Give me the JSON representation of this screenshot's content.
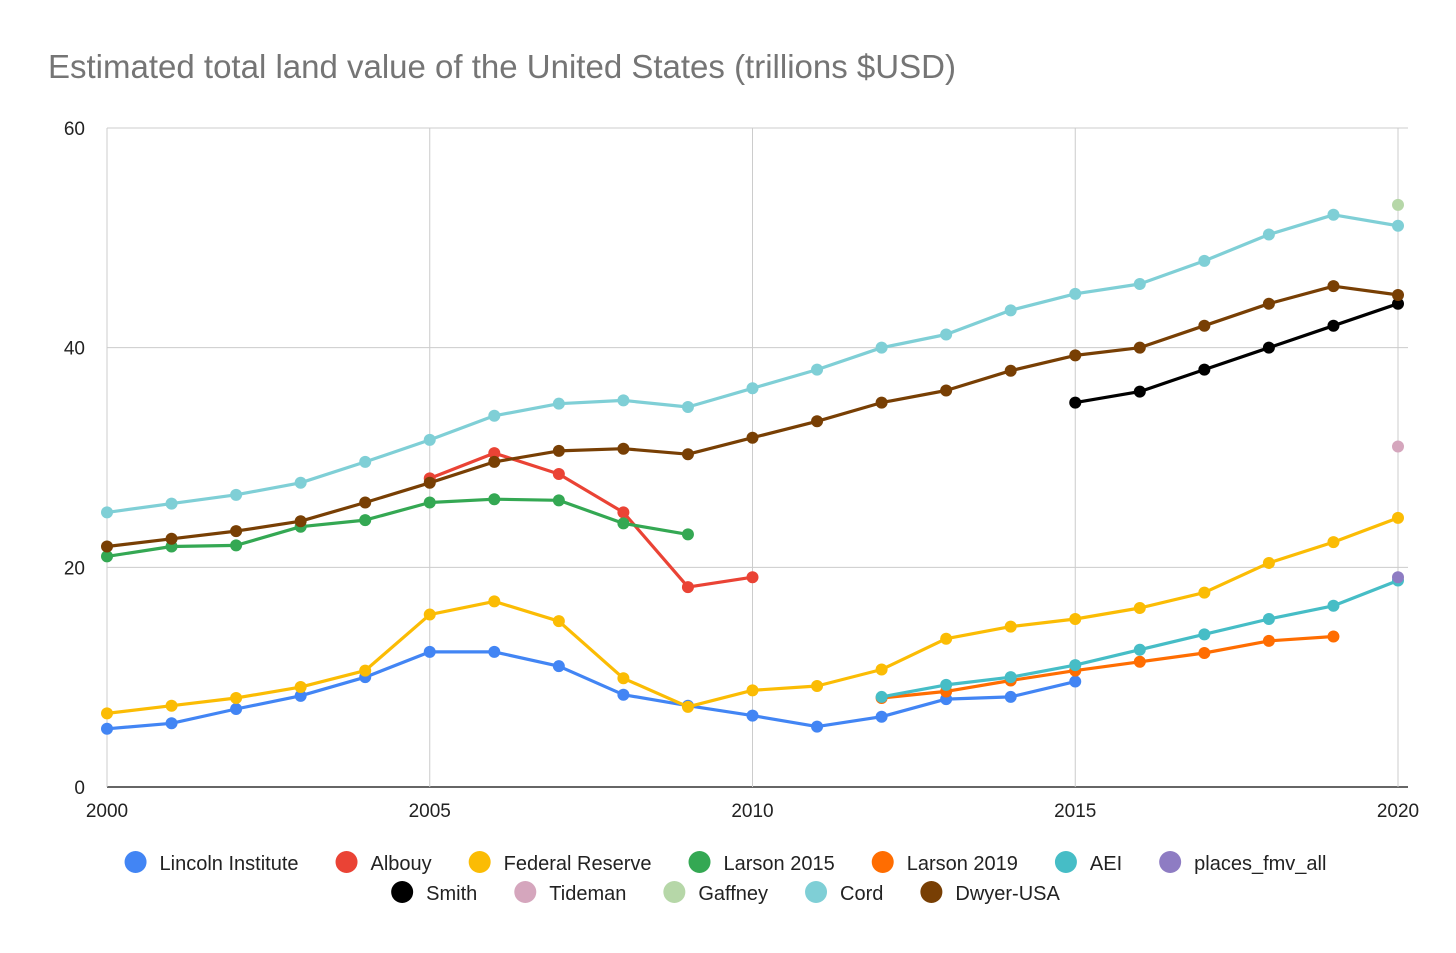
{
  "chart_data": {
    "type": "line",
    "title": "Estimated total land value of the United States (trillions $USD)",
    "xlabel": "",
    "ylabel": "",
    "xlim": [
      2000,
      2020
    ],
    "ylim": [
      0,
      60
    ],
    "x_ticks": [
      "2000",
      "2005",
      "2010",
      "2015",
      "2020"
    ],
    "y_ticks": [
      "0",
      "20",
      "40",
      "60"
    ],
    "grid": true,
    "legend_position": "bottom",
    "series": [
      {
        "name": "Lincoln Institute",
        "color": "#4285f4",
        "points": [
          [
            2000,
            5.3
          ],
          [
            2001,
            5.8
          ],
          [
            2002,
            7.1
          ],
          [
            2003,
            8.3
          ],
          [
            2004,
            10.0
          ],
          [
            2005,
            12.3
          ],
          [
            2006,
            12.3
          ],
          [
            2007,
            11.0
          ],
          [
            2008,
            8.4
          ],
          [
            2009,
            7.4
          ],
          [
            2010,
            6.5
          ],
          [
            2011,
            5.5
          ],
          [
            2012,
            6.4
          ],
          [
            2013,
            8.0
          ],
          [
            2014,
            8.2
          ],
          [
            2015,
            9.6
          ]
        ]
      },
      {
        "name": "Albouy",
        "color": "#ea4335",
        "points": [
          [
            2005,
            28.1
          ],
          [
            2006,
            30.4
          ],
          [
            2007,
            28.5
          ],
          [
            2008,
            25.0
          ],
          [
            2009,
            18.2
          ],
          [
            2010,
            19.1
          ]
        ]
      },
      {
        "name": "Federal Reserve",
        "color": "#fbbc04",
        "points": [
          [
            2000,
            6.7
          ],
          [
            2001,
            7.4
          ],
          [
            2002,
            8.1
          ],
          [
            2003,
            9.1
          ],
          [
            2004,
            10.6
          ],
          [
            2005,
            15.7
          ],
          [
            2006,
            16.9
          ],
          [
            2007,
            15.1
          ],
          [
            2008,
            9.9
          ],
          [
            2009,
            7.3
          ],
          [
            2010,
            8.8
          ],
          [
            2011,
            9.2
          ],
          [
            2012,
            10.7
          ],
          [
            2013,
            13.5
          ],
          [
            2014,
            14.6
          ],
          [
            2015,
            15.3
          ],
          [
            2016,
            16.3
          ],
          [
            2017,
            17.7
          ],
          [
            2018,
            20.4
          ],
          [
            2019,
            22.3
          ],
          [
            2020,
            24.5
          ]
        ]
      },
      {
        "name": "Larson 2015",
        "color": "#34a853",
        "points": [
          [
            2000,
            21.0
          ],
          [
            2001,
            21.9
          ],
          [
            2002,
            22.0
          ],
          [
            2003,
            23.7
          ],
          [
            2004,
            24.3
          ],
          [
            2005,
            25.9
          ],
          [
            2006,
            26.2
          ],
          [
            2007,
            26.1
          ],
          [
            2008,
            24.0
          ],
          [
            2009,
            23.0
          ]
        ]
      },
      {
        "name": "Larson 2019",
        "color": "#ff6d01",
        "points": [
          [
            2012,
            8.1
          ],
          [
            2013,
            8.7
          ],
          [
            2014,
            9.7
          ],
          [
            2015,
            10.6
          ],
          [
            2016,
            11.4
          ],
          [
            2017,
            12.2
          ],
          [
            2018,
            13.3
          ],
          [
            2019,
            13.7
          ]
        ]
      },
      {
        "name": "AEI",
        "color": "#46bdc6",
        "points": [
          [
            2012,
            8.2
          ],
          [
            2013,
            9.3
          ],
          [
            2014,
            10.0
          ],
          [
            2015,
            11.1
          ],
          [
            2016,
            12.5
          ],
          [
            2017,
            13.9
          ],
          [
            2018,
            15.3
          ],
          [
            2019,
            16.5
          ],
          [
            2020,
            18.8
          ]
        ]
      },
      {
        "name": "places_fmv_all",
        "color": "#8e7cc3",
        "points": [
          [
            2020,
            19.1
          ]
        ]
      },
      {
        "name": "Smith",
        "color": "#000000",
        "points": [
          [
            2015,
            35.0
          ],
          [
            2016,
            36.0
          ],
          [
            2017,
            38.0
          ],
          [
            2018,
            40.0
          ],
          [
            2019,
            42.0
          ],
          [
            2020,
            44.0
          ]
        ]
      },
      {
        "name": "Tideman",
        "color": "#d5a6bd",
        "points": [
          [
            2020,
            31.0
          ]
        ]
      },
      {
        "name": "Gaffney",
        "color": "#b6d7a8",
        "points": [
          [
            2020,
            53.0
          ]
        ]
      },
      {
        "name": "Cord",
        "color": "#7fcfd6",
        "points": [
          [
            2000,
            25.0
          ],
          [
            2001,
            25.8
          ],
          [
            2002,
            26.6
          ],
          [
            2003,
            27.7
          ],
          [
            2004,
            29.6
          ],
          [
            2005,
            31.6
          ],
          [
            2006,
            33.8
          ],
          [
            2007,
            34.9
          ],
          [
            2008,
            35.2
          ],
          [
            2009,
            34.6
          ],
          [
            2010,
            36.3
          ],
          [
            2011,
            38.0
          ],
          [
            2012,
            40.0
          ],
          [
            2013,
            41.2
          ],
          [
            2014,
            43.4
          ],
          [
            2015,
            44.9
          ],
          [
            2016,
            45.8
          ],
          [
            2017,
            47.9
          ],
          [
            2018,
            50.3
          ],
          [
            2019,
            52.1
          ],
          [
            2020,
            51.1
          ]
        ]
      },
      {
        "name": "Dwyer-USA",
        "color": "#783f04",
        "points": [
          [
            2000,
            21.9
          ],
          [
            2001,
            22.6
          ],
          [
            2002,
            23.3
          ],
          [
            2003,
            24.2
          ],
          [
            2004,
            25.9
          ],
          [
            2005,
            27.7
          ],
          [
            2006,
            29.6
          ],
          [
            2007,
            30.6
          ],
          [
            2008,
            30.8
          ],
          [
            2009,
            30.3
          ],
          [
            2010,
            31.8
          ],
          [
            2011,
            33.3
          ],
          [
            2012,
            35.0
          ],
          [
            2013,
            36.1
          ],
          [
            2014,
            37.9
          ],
          [
            2015,
            39.3
          ],
          [
            2016,
            40.0
          ],
          [
            2017,
            42.0
          ],
          [
            2018,
            44.0
          ],
          [
            2019,
            45.6
          ],
          [
            2020,
            44.8
          ]
        ]
      }
    ]
  }
}
